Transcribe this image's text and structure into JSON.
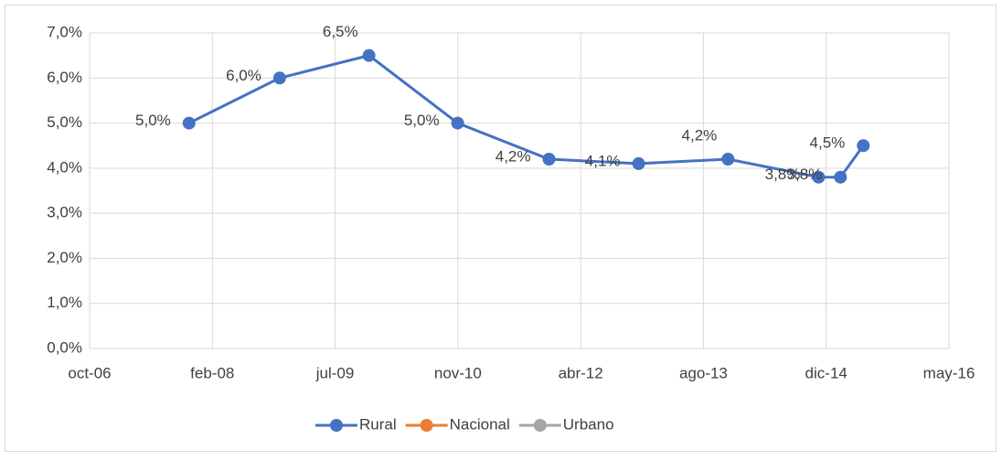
{
  "chart_data": {
    "type": "line",
    "x": [
      39405,
      39774,
      40138,
      40499,
      40871,
      41236,
      41600,
      41969,
      42058,
      42151
    ],
    "xlim": [
      39000,
      42500
    ],
    "xticks": [
      {
        "value": 39000,
        "label": "oct-06"
      },
      {
        "value": 39500,
        "label": "feb-08"
      },
      {
        "value": 40000,
        "label": "jul-09"
      },
      {
        "value": 40500,
        "label": "nov-10"
      },
      {
        "value": 41000,
        "label": "abr-12"
      },
      {
        "value": 41500,
        "label": "ago-13"
      },
      {
        "value": 42000,
        "label": "dic-14"
      },
      {
        "value": 42500,
        "label": "may-16"
      }
    ],
    "ylim": [
      0,
      7
    ],
    "yticks": [
      {
        "value": 0,
        "label": "0,0%"
      },
      {
        "value": 1,
        "label": "1,0%"
      },
      {
        "value": 2,
        "label": "2,0%"
      },
      {
        "value": 3,
        "label": "3,0%"
      },
      {
        "value": 4,
        "label": "4,0%"
      },
      {
        "value": 5,
        "label": "5,0%"
      },
      {
        "value": 6,
        "label": "6,0%"
      },
      {
        "value": 7,
        "label": "7,0%"
      }
    ],
    "grid": true,
    "legend": "bottom",
    "series": [
      {
        "name": "Rural",
        "color": "#4472c4",
        "values": [
          5.0,
          6.0,
          6.5,
          5.0,
          4.2,
          4.1,
          4.2,
          3.8,
          3.8,
          4.5
        ],
        "value_labels": [
          "5,0%",
          "6,0%",
          "6,5%",
          "5,0%",
          "4,2%",
          "4,1%",
          "4,2%",
          "3,8%",
          "3,8%",
          "4,5%"
        ]
      },
      {
        "name": "Nacional",
        "color": "#ed7d31",
        "values": [
          null,
          null,
          null,
          null,
          null,
          null,
          null,
          null,
          null,
          null
        ]
      },
      {
        "name": "Urbano",
        "color": "#a5a5a5",
        "values": [
          null,
          null,
          null,
          null,
          null,
          null,
          null,
          null,
          null,
          null
        ]
      }
    ]
  }
}
